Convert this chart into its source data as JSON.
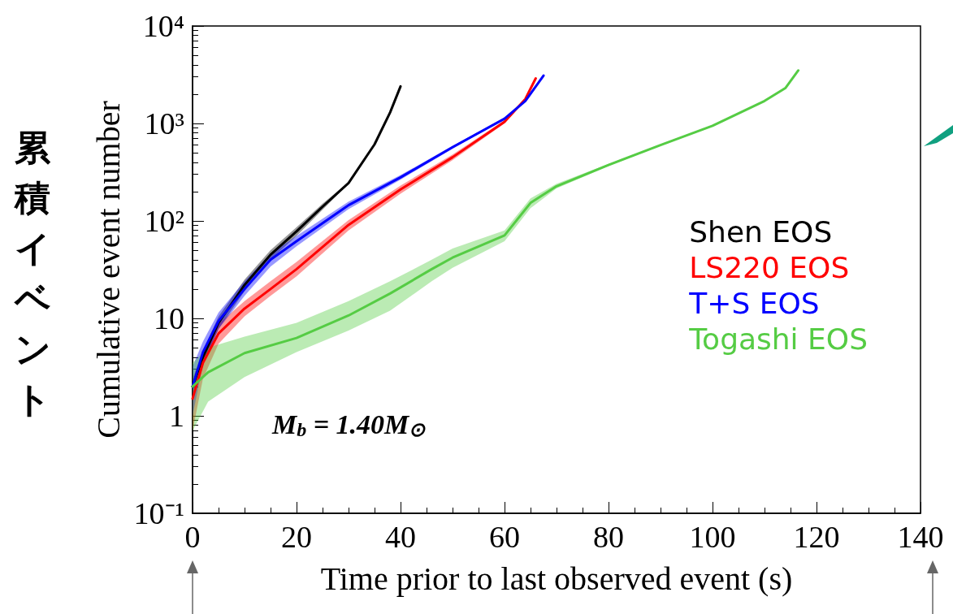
{
  "chart_data": {
    "type": "line",
    "xlabel": "Time prior to last observed event (s)",
    "ylabel": "Cumulative event number",
    "annotations": [
      "M$_{b}$ = 1.40M$_{⊙}$",
      "累積イベント"
    ],
    "log": "y",
    "grid": false,
    "legend": "right",
    "marker": "none",
    "line_style": "solid",
    "xlim": [
      0,
      140
    ],
    "xticks": [
      0,
      20,
      40,
      60,
      80,
      100,
      120,
      140
    ],
    "ylim": [
      0.1,
      10000
    ],
    "yticks": [
      {
        "value": 0.1,
        "label": "10⁻¹"
      },
      1,
      10,
      {
        "value": 100,
        "label": "10²"
      },
      {
        "value": 1000,
        "label": "10³"
      },
      {
        "value": 10000,
        "label": "10⁴"
      }
    ],
    "series": [
      {
        "name": "Shen EOS",
        "color": "#000000",
        "x": [
          0,
          2,
          5,
          10,
          15,
          20,
          25,
          30,
          35,
          38,
          40
        ],
        "values": [
          2,
          4,
          9,
          22,
          45,
          78,
          140,
          245,
          610,
          1300,
          2400
        ],
        "lower": [
          1.7,
          3.4,
          7.8,
          19,
          40,
          70,
          130,
          240,
          600,
          1300,
          2400
        ],
        "upper": [
          2.4,
          4.6,
          10.5,
          25,
          50,
          86,
          150,
          250,
          620,
          1300,
          2400
        ]
      },
      {
        "name": "LS220 EOS",
        "color": "#ff0000",
        "x": [
          0,
          2,
          5,
          10,
          15,
          20,
          30,
          40,
          50,
          60,
          64,
          66
        ],
        "values": [
          1.5,
          3.5,
          7,
          12.6,
          20,
          32,
          91,
          210,
          450,
          1040,
          1780,
          2900
        ],
        "lower": [
          0.7,
          2.4,
          5.5,
          10.5,
          17,
          27,
          80,
          190,
          420,
          1000,
          1750,
          2900
        ],
        "upper": [
          2.2,
          4.6,
          8.8,
          15,
          24,
          38,
          102,
          230,
          480,
          1080,
          1810,
          2900
        ]
      },
      {
        "name": "T+S EOS",
        "color": "#0000ff",
        "x": [
          0,
          2,
          5,
          10,
          15,
          20,
          30,
          40,
          50,
          60,
          64,
          67.5
        ],
        "values": [
          2,
          4.5,
          9.4,
          20,
          40,
          62,
          145,
          280,
          570,
          1120,
          1700,
          3100
        ],
        "lower": [
          1,
          3.4,
          7.8,
          17,
          34,
          55,
          132,
          265,
          550,
          1100,
          1690,
          3100
        ],
        "upper": [
          3.2,
          5.8,
          11.5,
          24,
          46,
          70,
          158,
          295,
          590,
          1140,
          1710,
          3100
        ]
      },
      {
        "name": "Togashi EOS",
        "color": "#55cc44",
        "x": [
          0,
          3,
          10,
          20,
          30,
          38,
          46,
          50,
          60,
          65,
          70,
          80,
          90,
          100,
          110,
          114,
          116.5
        ],
        "values": [
          2,
          2.8,
          4.4,
          6.3,
          10.7,
          18,
          32,
          42,
          71,
          153,
          227,
          375,
          600,
          945,
          1700,
          2300,
          3500
        ],
        "lower": [
          0.7,
          1.4,
          2.5,
          4.5,
          7.5,
          12,
          24,
          33,
          62,
          135,
          215,
          365,
          595,
          940,
          1700,
          2300,
          3500
        ],
        "upper": [
          3.5,
          5,
          6.5,
          9,
          15,
          24,
          40,
          52,
          80,
          170,
          240,
          385,
          605,
          950,
          1700,
          2300,
          3500
        ]
      }
    ]
  }
}
